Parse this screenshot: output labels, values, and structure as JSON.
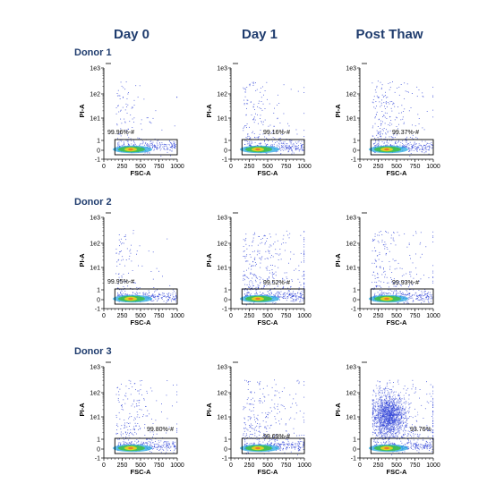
{
  "columns": [
    "Day 0",
    "Day 1",
    "Post Thaw"
  ],
  "donors": [
    "Donor 1",
    "Donor 2",
    "Donor 3"
  ],
  "colors": {
    "heading": "#1f3c6e",
    "events": "#2b3fd6",
    "axis": "#000000"
  },
  "chart_data": [
    {
      "type": "scatter",
      "donor": "Donor 1",
      "column": "Day 0",
      "xlabel": "FSC-A",
      "ylabel": "PI-A",
      "gate_label": "99.96%-#",
      "xlim": [
        0,
        1000
      ],
      "y_scale": "biexponential",
      "ylim": [
        -1,
        1000
      ],
      "x_ticks": [
        "0",
        "250",
        "500",
        "750",
        "1000"
      ],
      "y_ticks": [
        "1e3",
        "1e2",
        "1e1",
        "1",
        "0",
        "-1"
      ],
      "scatter_density": 0.3
    },
    {
      "type": "scatter",
      "donor": "Donor 1",
      "column": "Day 1",
      "xlabel": "FSC-A",
      "ylabel": "PI-A",
      "gate_label": "99.16%-#",
      "xlim": [
        0,
        1000
      ],
      "y_scale": "biexponential",
      "ylim": [
        -1,
        1000
      ],
      "x_ticks": [
        "0",
        "250",
        "500",
        "750",
        "1000"
      ],
      "y_ticks": [
        "1e3",
        "1e2",
        "1e1",
        "1",
        "0",
        "-1"
      ],
      "scatter_density": 0.7
    },
    {
      "type": "scatter",
      "donor": "Donor 1",
      "column": "Post Thaw",
      "xlabel": "FSC-A",
      "ylabel": "PI-A",
      "gate_label": "99.37%-#",
      "xlim": [
        0,
        1000
      ],
      "y_scale": "biexponential",
      "ylim": [
        -1,
        1000
      ],
      "x_ticks": [
        "0",
        "250",
        "500",
        "750",
        "1000"
      ],
      "y_ticks": [
        "1e3",
        "1e2",
        "1e1",
        "1",
        "0",
        "-1"
      ],
      "scatter_density": 1.0
    },
    {
      "type": "scatter",
      "donor": "Donor 2",
      "column": "Day 0",
      "xlabel": "FSC-A",
      "ylabel": "PI-A",
      "gate_label": "99.95%-#",
      "xlim": [
        0,
        1000
      ],
      "y_scale": "biexponential",
      "ylim": [
        -1,
        1000
      ],
      "x_ticks": [
        "0",
        "250",
        "500",
        "750",
        "1000"
      ],
      "y_ticks": [
        "1e3",
        "1e2",
        "1e1",
        "1",
        "0",
        "-1"
      ],
      "scatter_density": 0.3
    },
    {
      "type": "scatter",
      "donor": "Donor 2",
      "column": "Day 1",
      "xlabel": "FSC-A",
      "ylabel": "PI-A",
      "gate_label": "99.52%-#",
      "xlim": [
        0,
        1000
      ],
      "y_scale": "biexponential",
      "ylim": [
        -1,
        1000
      ],
      "x_ticks": [
        "0",
        "250",
        "500",
        "750",
        "1000"
      ],
      "y_ticks": [
        "1e3",
        "1e2",
        "1e1",
        "1",
        "0",
        "-1"
      ],
      "scatter_density": 1.6
    },
    {
      "type": "scatter",
      "donor": "Donor 2",
      "column": "Post Thaw",
      "xlabel": "FSC-A",
      "ylabel": "PI-A",
      "gate_label": "99.93%-#",
      "xlim": [
        0,
        1000
      ],
      "y_scale": "biexponential",
      "ylim": [
        -1,
        1000
      ],
      "x_ticks": [
        "0",
        "250",
        "500",
        "750",
        "1000"
      ],
      "y_ticks": [
        "1e3",
        "1e2",
        "1e1",
        "1",
        "0",
        "-1"
      ],
      "scatter_density": 0.9
    },
    {
      "type": "scatter",
      "donor": "Donor 3",
      "column": "Day 0",
      "xlabel": "FSC-A",
      "ylabel": "PI-A",
      "gate_label": "99.80%-#",
      "xlim": [
        0,
        1000
      ],
      "y_scale": "biexponential",
      "ylim": [
        -1,
        1000
      ],
      "x_ticks": [
        "0",
        "250",
        "500",
        "750",
        "1000"
      ],
      "y_ticks": [
        "1e3",
        "1e2",
        "1e1",
        "1",
        "0",
        "-1"
      ],
      "scatter_density": 0.9
    },
    {
      "type": "scatter",
      "donor": "Donor 3",
      "column": "Day 1",
      "xlabel": "FSC-A",
      "ylabel": "PI-A",
      "gate_label": "99.69%-#",
      "xlim": [
        0,
        1000
      ],
      "y_scale": "biexponential",
      "ylim": [
        -1,
        1000
      ],
      "x_ticks": [
        "0",
        "250",
        "500",
        "750",
        "1000"
      ],
      "y_ticks": [
        "1e3",
        "1e2",
        "1e1",
        "1",
        "0",
        "-1"
      ],
      "scatter_density": 1.2
    },
    {
      "type": "scatter",
      "donor": "Donor 3",
      "column": "Post Thaw",
      "xlabel": "FSC-A",
      "ylabel": "PI-A",
      "gate_label": "93.76%",
      "xlim": [
        0,
        1000
      ],
      "y_scale": "biexponential",
      "ylim": [
        -1,
        1000
      ],
      "x_ticks": [
        "0",
        "250",
        "500",
        "750",
        "1000"
      ],
      "y_ticks": [
        "1e3",
        "1e2",
        "1e1",
        "1",
        "0",
        "-1"
      ],
      "scatter_density": 2.0,
      "high_pi_cluster": true
    }
  ]
}
